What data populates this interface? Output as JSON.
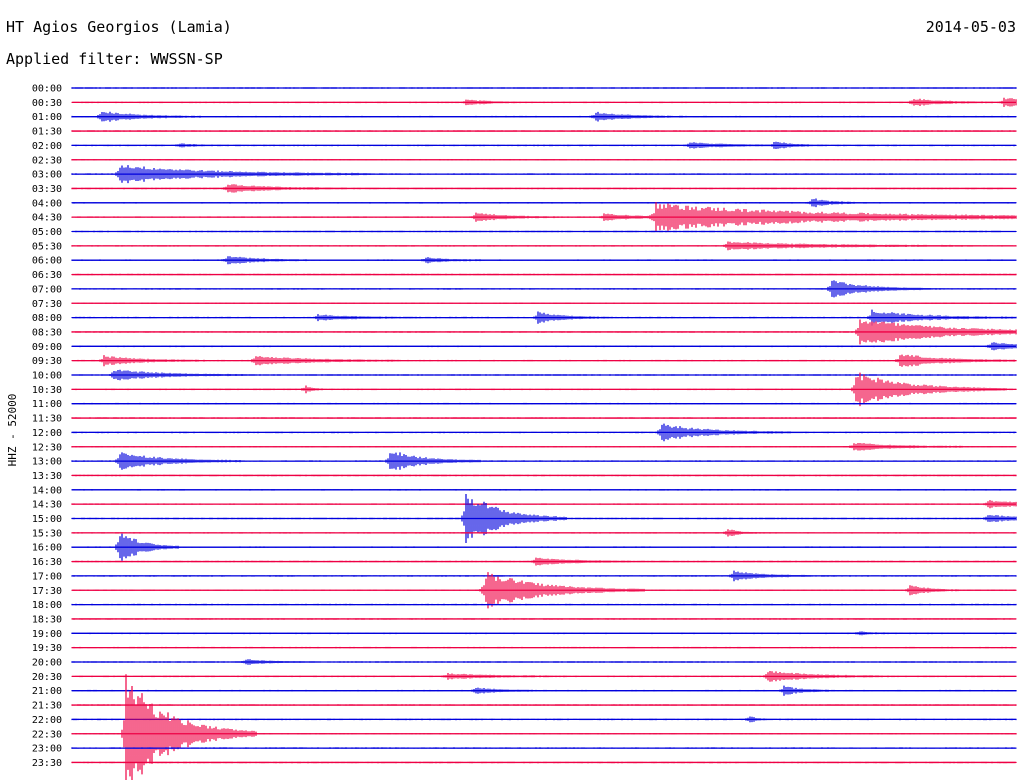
{
  "header": {
    "station": "HT Agios Georgios (Lamia)",
    "date": "2014-05-03",
    "filter": "Applied filter: WWSSN-SP",
    "channel": "HHZ - 52000"
  },
  "colors": {
    "blue_trace": "#0000dd",
    "red_trace": "#ee0044"
  },
  "chart_data": {
    "type": "line",
    "title": "HT Agios Georgios (Lamia)",
    "subtitle": "Applied filter: WWSSN-SP",
    "ylabel": "HHZ - 52000",
    "xlabel": "",
    "trace_labels": [
      "00:00",
      "00:30",
      "01:00",
      "01:30",
      "02:00",
      "02:30",
      "03:00",
      "03:30",
      "04:00",
      "04:30",
      "05:00",
      "05:30",
      "06:00",
      "06:30",
      "07:00",
      "07:30",
      "08:00",
      "08:30",
      "09:00",
      "09:30",
      "10:00",
      "10:30",
      "11:00",
      "11:30",
      "12:00",
      "12:30",
      "13:00",
      "13:30",
      "14:00",
      "14:30",
      "15:00",
      "15:30",
      "16:00",
      "16:30",
      "17:00",
      "17:30",
      "18:00",
      "18:30",
      "19:00",
      "19:30",
      "20:00",
      "20:30",
      "21:00",
      "21:30",
      "22:00",
      "22:30",
      "23:00",
      "23:30"
    ],
    "trace_colors": [
      "blue",
      "red"
    ],
    "minutes_per_trace": 30,
    "events": [
      {
        "trace": 1,
        "minute": 12.5,
        "amp": 3,
        "dur": 0.6
      },
      {
        "trace": 1,
        "minute": 26.7,
        "amp": 4,
        "dur": 0.8
      },
      {
        "trace": 1,
        "minute": 29.6,
        "amp": 5,
        "dur": 0.9
      },
      {
        "trace": 2,
        "minute": 0.9,
        "amp": 6,
        "dur": 1.0
      },
      {
        "trace": 2,
        "minute": 16.6,
        "amp": 5,
        "dur": 0.9
      },
      {
        "trace": 4,
        "minute": 3.4,
        "amp": 2,
        "dur": 0.4
      },
      {
        "trace": 4,
        "minute": 19.6,
        "amp": 3,
        "dur": 1.0
      },
      {
        "trace": 4,
        "minute": 22.3,
        "amp": 4,
        "dur": 0.5
      },
      {
        "trace": 6,
        "minute": 1.5,
        "amp": 10,
        "dur": 2.5
      },
      {
        "trace": 7,
        "minute": 4.9,
        "amp": 5,
        "dur": 1.2
      },
      {
        "trace": 8,
        "minute": 23.5,
        "amp": 5,
        "dur": 0.5
      },
      {
        "trace": 9,
        "minute": 12.8,
        "amp": 5,
        "dur": 0.8
      },
      {
        "trace": 9,
        "minute": 16.9,
        "amp": 4,
        "dur": 0.8
      },
      {
        "trace": 9,
        "minute": 18.5,
        "amp": 14,
        "dur": 5.0
      },
      {
        "trace": 11,
        "minute": 20.8,
        "amp": 4,
        "dur": 2.5
      },
      {
        "trace": 12,
        "minute": 4.9,
        "amp": 5,
        "dur": 0.8
      },
      {
        "trace": 12,
        "minute": 11.2,
        "amp": 3,
        "dur": 0.6
      },
      {
        "trace": 14,
        "minute": 24.1,
        "amp": 9,
        "dur": 1.0
      },
      {
        "trace": 16,
        "minute": 7.8,
        "amp": 3,
        "dur": 1.0
      },
      {
        "trace": 16,
        "minute": 14.8,
        "amp": 6,
        "dur": 0.7
      },
      {
        "trace": 16,
        "minute": 25.4,
        "amp": 8,
        "dur": 1.4
      },
      {
        "trace": 17,
        "minute": 25.0,
        "amp": 14,
        "dur": 2.5
      },
      {
        "trace": 18,
        "minute": 29.2,
        "amp": 4,
        "dur": 1.0
      },
      {
        "trace": 19,
        "minute": 1.0,
        "amp": 5,
        "dur": 1.0
      },
      {
        "trace": 19,
        "minute": 5.8,
        "amp": 5,
        "dur": 1.5
      },
      {
        "trace": 19,
        "minute": 26.3,
        "amp": 7,
        "dur": 1.2
      },
      {
        "trace": 20,
        "minute": 1.3,
        "amp": 6,
        "dur": 1.3
      },
      {
        "trace": 21,
        "minute": 7.4,
        "amp": 4,
        "dur": 0.2
      },
      {
        "trace": 21,
        "minute": 24.9,
        "amp": 18,
        "dur": 1.5
      },
      {
        "trace": 24,
        "minute": 18.7,
        "amp": 9,
        "dur": 1.3
      },
      {
        "trace": 25,
        "minute": 24.8,
        "amp": 4,
        "dur": 1.1
      },
      {
        "trace": 26,
        "minute": 1.5,
        "amp": 10,
        "dur": 1.2
      },
      {
        "trace": 26,
        "minute": 10.1,
        "amp": 12,
        "dur": 0.9
      },
      {
        "trace": 29,
        "minute": 29.1,
        "amp": 4,
        "dur": 1.2
      },
      {
        "trace": 30,
        "minute": 12.5,
        "amp": 30,
        "dur": 1.0
      },
      {
        "trace": 30,
        "minute": 29.1,
        "amp": 4,
        "dur": 0.8
      },
      {
        "trace": 31,
        "minute": 20.8,
        "amp": 5,
        "dur": 0.3
      },
      {
        "trace": 32,
        "minute": 1.5,
        "amp": 18,
        "dur": 0.6
      },
      {
        "trace": 33,
        "minute": 14.7,
        "amp": 4,
        "dur": 1.0
      },
      {
        "trace": 34,
        "minute": 21.0,
        "amp": 5,
        "dur": 0.8
      },
      {
        "trace": 35,
        "minute": 13.1,
        "amp": 20,
        "dur": 1.6
      },
      {
        "trace": 35,
        "minute": 26.6,
        "amp": 6,
        "dur": 0.5
      },
      {
        "trace": 38,
        "minute": 25.0,
        "amp": 2,
        "dur": 0.3
      },
      {
        "trace": 40,
        "minute": 5.5,
        "amp": 3,
        "dur": 0.6
      },
      {
        "trace": 41,
        "minute": 11.9,
        "amp": 3,
        "dur": 1.2
      },
      {
        "trace": 41,
        "minute": 22.1,
        "amp": 6,
        "dur": 1.2
      },
      {
        "trace": 42,
        "minute": 12.8,
        "amp": 3,
        "dur": 0.7
      },
      {
        "trace": 42,
        "minute": 22.6,
        "amp": 5,
        "dur": 0.5
      },
      {
        "trace": 44,
        "minute": 21.5,
        "amp": 4,
        "dur": 0.2
      },
      {
        "trace": 45,
        "minute": 1.7,
        "amp": 60,
        "dur": 1.3
      }
    ]
  }
}
